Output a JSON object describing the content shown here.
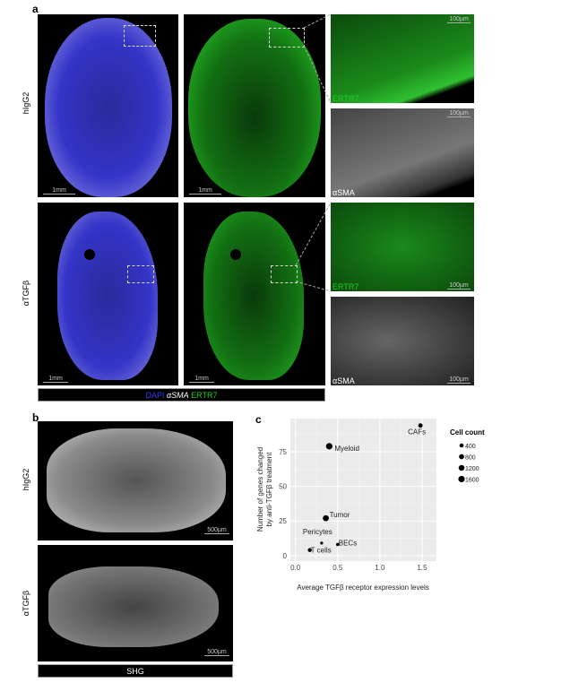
{
  "panel_a": {
    "label": "a",
    "rows": [
      "hIgG2",
      "αTGFβ"
    ],
    "scale_1mm": "1mm",
    "scale_100um": "100µm",
    "channel_ertr7": "ERTR7",
    "channel_asma": "αSMA",
    "legend": {
      "dapi": "DAPI",
      "asma": "αSMA",
      "ertr7": "ERTR7"
    },
    "colors": {
      "dapi": "#3a3aff",
      "ertr7": "#22cc22",
      "asma": "#ffffff"
    }
  },
  "panel_b": {
    "label": "b",
    "rows": [
      "hIgG2",
      "αTGFβ"
    ],
    "scale": "500µm",
    "legend": "SHG"
  },
  "panel_c": {
    "label": "c"
  },
  "chart_data": {
    "type": "scatter",
    "xlabel": "Average TGFβ receptor expression levels",
    "ylabel": [
      "Number of genes changed",
      "by anti-TGFβ treatment"
    ],
    "xlim": [
      -0.06,
      1.67
    ],
    "ylim": [
      -4,
      99
    ],
    "xticks": [
      "0.0",
      "0.5",
      "1.0",
      "1.5"
    ],
    "xtick_values": [
      0,
      0.5,
      1.0,
      1.5
    ],
    "yticks": [
      "0",
      "25",
      "50",
      "75"
    ],
    "ytick_values": [
      0,
      25,
      50,
      75
    ],
    "grid": true,
    "background": "#ebebeb",
    "legend_position": "right",
    "legend_title": "Cell count",
    "legend_sizes": [
      400,
      800,
      1200,
      1600
    ],
    "legend_labels": [
      "400",
      "800",
      "1200",
      "1600"
    ],
    "points": [
      {
        "label": "CAFs",
        "x": 1.48,
        "y": 94,
        "count": 500
      },
      {
        "label": "Myeloid",
        "x": 0.4,
        "y": 79,
        "count": 1600
      },
      {
        "label": "Tumor",
        "x": 0.36,
        "y": 27,
        "count": 1300
      },
      {
        "label": "Pericytes",
        "x": 0.31,
        "y": 9,
        "count": 100
      },
      {
        "label": "BECs",
        "x": 0.5,
        "y": 8,
        "count": 150
      },
      {
        "label": "T cells",
        "x": 0.17,
        "y": 4,
        "count": 350
      }
    ]
  }
}
